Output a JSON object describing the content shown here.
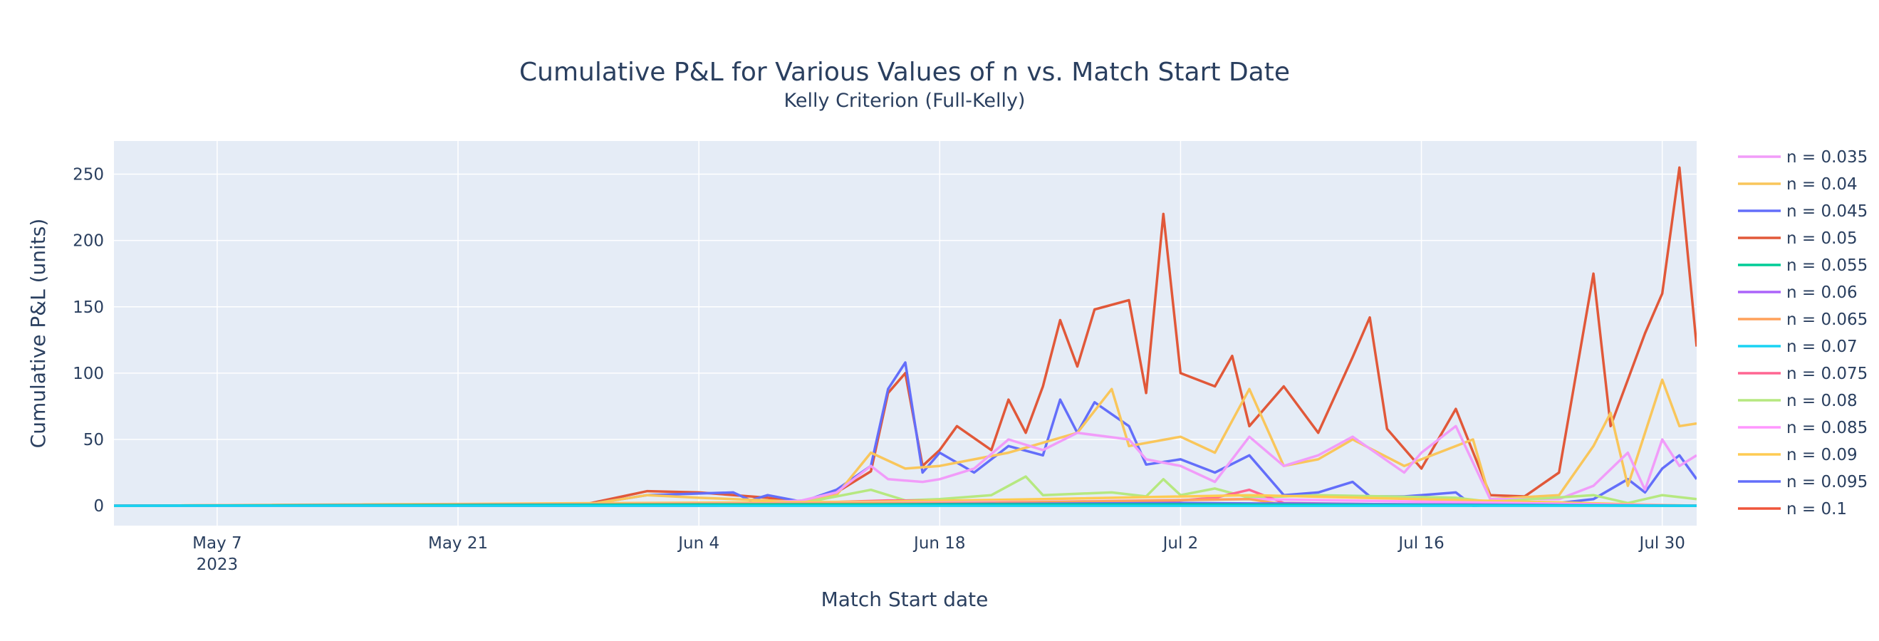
{
  "chart_data": {
    "type": "line",
    "title": "Cumulative P&L for Various Values of n vs. Match Start Date",
    "subtitle": "Kelly Criterion (Full-Kelly)",
    "xlabel": "Match Start date",
    "ylabel": "Cumulative P&L (units)",
    "xlim": [
      "2023-05-01",
      "2023-08-01"
    ],
    "ylim": [
      -15,
      275
    ],
    "x_ticks": [
      "2023-05-07",
      "2023-05-21",
      "2023-06-04",
      "2023-06-18",
      "2023-07-02",
      "2023-07-16",
      "2023-07-30"
    ],
    "x_tick_labels": [
      "May 7",
      "May 21",
      "Jun 4",
      "Jun 18",
      "Jul 2",
      "Jul 16",
      "Jul 30"
    ],
    "x_tick_sublabel": "2023",
    "y_ticks": [
      0,
      50,
      100,
      150,
      200,
      250
    ],
    "grid": true,
    "plot_bgcolor": "#e5ecf6",
    "legend_position": "right",
    "series": [
      {
        "name": "n = 0.035",
        "color": "#f19cf9",
        "points": [
          [
            "2023-05-01",
            0
          ],
          [
            "2023-05-28",
            0
          ],
          [
            "2023-05-29",
            2
          ],
          [
            "2023-05-30",
            0
          ],
          [
            "2023-06-05",
            0
          ],
          [
            "2023-06-10",
            4
          ],
          [
            "2023-06-12",
            10
          ],
          [
            "2023-06-14",
            30
          ],
          [
            "2023-06-15",
            20
          ],
          [
            "2023-06-17",
            18
          ],
          [
            "2023-06-18",
            20
          ],
          [
            "2023-06-20",
            28
          ],
          [
            "2023-06-22",
            50
          ],
          [
            "2023-06-24",
            42
          ],
          [
            "2023-06-26",
            55
          ],
          [
            "2023-06-29",
            50
          ],
          [
            "2023-06-30",
            35
          ],
          [
            "2023-07-02",
            30
          ],
          [
            "2023-07-04",
            18
          ],
          [
            "2023-07-06",
            52
          ],
          [
            "2023-07-08",
            30
          ],
          [
            "2023-07-10",
            38
          ],
          [
            "2023-07-12",
            52
          ],
          [
            "2023-07-15",
            25
          ],
          [
            "2023-07-16",
            40
          ],
          [
            "2023-07-18",
            60
          ],
          [
            "2023-07-20",
            5
          ],
          [
            "2023-07-24",
            5
          ],
          [
            "2023-07-26",
            15
          ],
          [
            "2023-07-28",
            40
          ],
          [
            "2023-07-29",
            12
          ],
          [
            "2023-07-30",
            50
          ],
          [
            "2023-07-31",
            30
          ],
          [
            "2023-08-01",
            38
          ]
        ]
      },
      {
        "name": "n = 0.04",
        "color": "#f9c65b",
        "points": [
          [
            "2023-05-01",
            0
          ],
          [
            "2023-05-28",
            0
          ],
          [
            "2023-06-01",
            8
          ],
          [
            "2023-06-04",
            6
          ],
          [
            "2023-06-10",
            3
          ],
          [
            "2023-06-12",
            8
          ],
          [
            "2023-06-14",
            40
          ],
          [
            "2023-06-16",
            28
          ],
          [
            "2023-06-18",
            30
          ],
          [
            "2023-06-22",
            40
          ],
          [
            "2023-06-26",
            55
          ],
          [
            "2023-06-28",
            88
          ],
          [
            "2023-06-29",
            45
          ],
          [
            "2023-07-02",
            52
          ],
          [
            "2023-07-04",
            40
          ],
          [
            "2023-07-06",
            88
          ],
          [
            "2023-07-08",
            30
          ],
          [
            "2023-07-10",
            35
          ],
          [
            "2023-07-12",
            50
          ],
          [
            "2023-07-15",
            30
          ],
          [
            "2023-07-17",
            40
          ],
          [
            "2023-07-19",
            50
          ],
          [
            "2023-07-20",
            5
          ],
          [
            "2023-07-24",
            8
          ],
          [
            "2023-07-26",
            45
          ],
          [
            "2023-07-27",
            70
          ],
          [
            "2023-07-28",
            15
          ],
          [
            "2023-07-30",
            95
          ],
          [
            "2023-07-31",
            60
          ],
          [
            "2023-08-01",
            62
          ]
        ]
      },
      {
        "name": "n = 0.045",
        "color": "#636efa",
        "points": [
          [
            "2023-05-01",
            0
          ],
          [
            "2023-05-28",
            0
          ],
          [
            "2023-06-01",
            8
          ],
          [
            "2023-06-06",
            10
          ],
          [
            "2023-06-07",
            4
          ],
          [
            "2023-06-08",
            8
          ],
          [
            "2023-06-10",
            3
          ],
          [
            "2023-06-12",
            12
          ],
          [
            "2023-06-14",
            30
          ],
          [
            "2023-06-15",
            88
          ],
          [
            "2023-06-16",
            108
          ],
          [
            "2023-06-17",
            25
          ],
          [
            "2023-06-18",
            40
          ],
          [
            "2023-06-20",
            25
          ],
          [
            "2023-06-22",
            45
          ],
          [
            "2023-06-24",
            38
          ],
          [
            "2023-06-25",
            80
          ],
          [
            "2023-06-26",
            55
          ],
          [
            "2023-06-27",
            78
          ],
          [
            "2023-06-29",
            60
          ],
          [
            "2023-06-30",
            31
          ],
          [
            "2023-07-02",
            35
          ],
          [
            "2023-07-04",
            25
          ],
          [
            "2023-07-06",
            38
          ],
          [
            "2023-07-08",
            8
          ],
          [
            "2023-07-10",
            10
          ],
          [
            "2023-07-12",
            18
          ],
          [
            "2023-07-13",
            7
          ],
          [
            "2023-07-15",
            7
          ],
          [
            "2023-07-16",
            8
          ],
          [
            "2023-07-18",
            10
          ],
          [
            "2023-07-19",
            0
          ],
          [
            "2023-07-24",
            2
          ],
          [
            "2023-07-26",
            5
          ],
          [
            "2023-07-28",
            20
          ],
          [
            "2023-07-29",
            10
          ],
          [
            "2023-07-30",
            28
          ],
          [
            "2023-07-31",
            38
          ],
          [
            "2023-08-01",
            20
          ]
        ]
      },
      {
        "name": "n = 0.05",
        "color": "#e15839",
        "points": [
          [
            "2023-05-01",
            0
          ],
          [
            "2023-05-28",
            0
          ],
          [
            "2023-06-01",
            11
          ],
          [
            "2023-06-04",
            10
          ],
          [
            "2023-06-08",
            6
          ],
          [
            "2023-06-10",
            2
          ],
          [
            "2023-06-12",
            10
          ],
          [
            "2023-06-14",
            26
          ],
          [
            "2023-06-15",
            85
          ],
          [
            "2023-06-16",
            100
          ],
          [
            "2023-06-17",
            30
          ],
          [
            "2023-06-18",
            42
          ],
          [
            "2023-06-19",
            60
          ],
          [
            "2023-06-21",
            42
          ],
          [
            "2023-06-22",
            80
          ],
          [
            "2023-06-23",
            55
          ],
          [
            "2023-06-24",
            90
          ],
          [
            "2023-06-25",
            140
          ],
          [
            "2023-06-26",
            105
          ],
          [
            "2023-06-27",
            148
          ],
          [
            "2023-06-29",
            155
          ],
          [
            "2023-06-30",
            85
          ],
          [
            "2023-07-01",
            220
          ],
          [
            "2023-07-02",
            100
          ],
          [
            "2023-07-04",
            90
          ],
          [
            "2023-07-05",
            113
          ],
          [
            "2023-07-06",
            60
          ],
          [
            "2023-07-08",
            90
          ],
          [
            "2023-07-10",
            55
          ],
          [
            "2023-07-12",
            112
          ],
          [
            "2023-07-13",
            142
          ],
          [
            "2023-07-14",
            58
          ],
          [
            "2023-07-16",
            28
          ],
          [
            "2023-07-18",
            73
          ],
          [
            "2023-07-20",
            8
          ],
          [
            "2023-07-22",
            7
          ],
          [
            "2023-07-24",
            25
          ],
          [
            "2023-07-26",
            175
          ],
          [
            "2023-07-27",
            60
          ],
          [
            "2023-07-28",
            95
          ],
          [
            "2023-07-29",
            130
          ],
          [
            "2023-07-30",
            160
          ],
          [
            "2023-07-31",
            255
          ],
          [
            "2023-08-01",
            120
          ]
        ]
      },
      {
        "name": "n = 0.055",
        "color": "#00cc96",
        "points": [
          [
            "2023-05-01",
            0
          ],
          [
            "2023-06-10",
            1
          ],
          [
            "2023-07-01",
            1
          ],
          [
            "2023-08-01",
            0
          ]
        ]
      },
      {
        "name": "n = 0.06",
        "color": "#ab63fa",
        "points": [
          [
            "2023-05-01",
            0
          ],
          [
            "2023-06-14",
            1
          ],
          [
            "2023-07-15",
            1
          ],
          [
            "2023-08-01",
            0
          ]
        ]
      },
      {
        "name": "n = 0.065",
        "color": "#ffa15a",
        "points": [
          [
            "2023-05-01",
            0
          ],
          [
            "2023-06-20",
            2
          ],
          [
            "2023-07-06",
            5
          ],
          [
            "2023-07-08",
            1
          ],
          [
            "2023-08-01",
            0
          ]
        ]
      },
      {
        "name": "n = 0.07",
        "color": "#19d3f3",
        "points": [
          [
            "2023-05-01",
            0
          ],
          [
            "2023-06-20",
            0
          ],
          [
            "2023-07-20",
            0
          ],
          [
            "2023-08-01",
            0
          ]
        ]
      },
      {
        "name": "n = 0.075",
        "color": "#ff6692",
        "points": [
          [
            "2023-05-01",
            0
          ],
          [
            "2023-06-10",
            2
          ],
          [
            "2023-06-15",
            4
          ],
          [
            "2023-06-22",
            3
          ],
          [
            "2023-06-30",
            2
          ],
          [
            "2023-07-04",
            6
          ],
          [
            "2023-07-06",
            12
          ],
          [
            "2023-07-08",
            2
          ],
          [
            "2023-07-15",
            1
          ],
          [
            "2023-08-01",
            0
          ]
        ]
      },
      {
        "name": "n = 0.08",
        "color": "#b6e880",
        "points": [
          [
            "2023-05-01",
            0
          ],
          [
            "2023-06-10",
            2
          ],
          [
            "2023-06-14",
            12
          ],
          [
            "2023-06-16",
            4
          ],
          [
            "2023-06-18",
            5
          ],
          [
            "2023-06-21",
            8
          ],
          [
            "2023-06-23",
            22
          ],
          [
            "2023-06-24",
            8
          ],
          [
            "2023-06-28",
            10
          ],
          [
            "2023-06-30",
            7
          ],
          [
            "2023-07-01",
            20
          ],
          [
            "2023-07-02",
            8
          ],
          [
            "2023-07-04",
            13
          ],
          [
            "2023-07-06",
            6
          ],
          [
            "2023-07-10",
            8
          ],
          [
            "2023-07-14",
            7
          ],
          [
            "2023-07-18",
            6
          ],
          [
            "2023-07-20",
            3
          ],
          [
            "2023-07-26",
            8
          ],
          [
            "2023-07-28",
            2
          ],
          [
            "2023-07-30",
            8
          ],
          [
            "2023-08-01",
            5
          ]
        ]
      },
      {
        "name": "n = 0.085",
        "color": "#ff97ff",
        "points": [
          [
            "2023-05-01",
            0
          ],
          [
            "2023-06-14",
            2
          ],
          [
            "2023-06-24",
            3
          ],
          [
            "2023-07-06",
            5
          ],
          [
            "2023-08-01",
            0
          ]
        ]
      },
      {
        "name": "n = 0.09",
        "color": "#fecb52",
        "points": [
          [
            "2023-05-01",
            0
          ],
          [
            "2023-06-14",
            3
          ],
          [
            "2023-06-24",
            5
          ],
          [
            "2023-07-06",
            8
          ],
          [
            "2023-08-01",
            0
          ]
        ]
      },
      {
        "name": "n = 0.095",
        "color": "#636efa",
        "points": [
          [
            "2023-05-01",
            0
          ],
          [
            "2023-06-14",
            1
          ],
          [
            "2023-07-02",
            2
          ],
          [
            "2023-08-01",
            0
          ]
        ]
      },
      {
        "name": "n = 0.1",
        "color": "#ef553b",
        "points": [
          [
            "2023-05-01",
            0
          ],
          [
            "2023-06-14",
            1
          ],
          [
            "2023-07-02",
            1
          ],
          [
            "2023-08-01",
            0
          ]
        ]
      }
    ]
  }
}
